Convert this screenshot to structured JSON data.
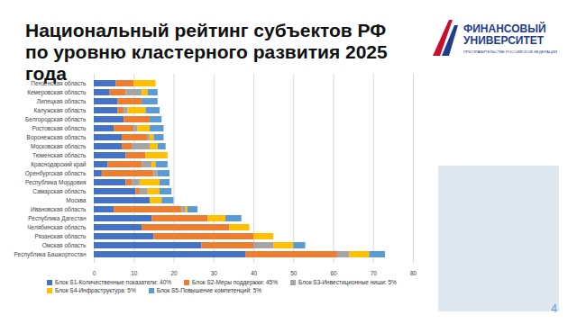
{
  "chart_data": {
    "type": "bar",
    "title": "Национальный рейтинг субъектов РФ по уровню кластерного развития 2025 года",
    "orientation": "horizontal",
    "stacked": true,
    "grid": true,
    "legend": "bottom",
    "categories": [
      "Пензенская область",
      "Кемеровская область",
      "Липецкая область",
      "Калужская область",
      "Белгородская область",
      "Ростовская область",
      "Воронежская область",
      "Московская область",
      "Тюменская область",
      "Краснодарский край",
      "Оренбургская область",
      "Республика Мордовия",
      "Самарская область",
      "Москва",
      "Ивановская область",
      "Республика Дагестан",
      "Челябинская область",
      "Рязанская область",
      "Омская область",
      "Республика Башкортостан"
    ],
    "series": [
      {
        "name": "Блок S1-Количественные показатели: 40%",
        "color": "#4472c4",
        "values": [
          5.5,
          4,
          6,
          6,
          7.5,
          5,
          7,
          7,
          8,
          3.5,
          2,
          8,
          10.5,
          14,
          5,
          14.5,
          12,
          15,
          27,
          38
        ]
      },
      {
        "name": "Блок S2-Меры поддержки: 45%",
        "color": "#ed7d31",
        "values": [
          4.5,
          4,
          6,
          1.5,
          6.5,
          5,
          6.5,
          2.5,
          5,
          8.5,
          13,
          1.5,
          1,
          0,
          17,
          14,
          22,
          25,
          13,
          23
        ]
      },
      {
        "name": "Блок S3-Инвестиционные ниши: 5%",
        "color": "#a5a5a5",
        "values": [
          0,
          4,
          0,
          1,
          0,
          1,
          0.5,
          4.5,
          0,
          2.5,
          1,
          2,
          2,
          0,
          1,
          0,
          0,
          0,
          5,
          3
        ]
      },
      {
        "name": "Блок S4-Инфраструктура: 5%",
        "color": "#ffc000",
        "values": [
          5.5,
          1.5,
          0,
          4.5,
          0,
          3,
          1,
          2,
          5.5,
          1,
          0,
          5,
          3,
          3,
          0.5,
          4.5,
          5,
          5,
          5,
          5
        ]
      },
      {
        "name": "Блок S5-Повышение компетенций: 5%",
        "color": "#5b9bd5",
        "values": [
          0,
          2.5,
          4,
          3.5,
          3,
          3.5,
          2.5,
          2,
          0,
          3,
          3,
          2.5,
          3,
          3,
          2.5,
          4,
          0,
          0,
          3,
          4
        ]
      }
    ],
    "xlim": [
      0,
      80
    ],
    "xticks": [
      0,
      10,
      20,
      30,
      40,
      50,
      60,
      70,
      80
    ]
  },
  "slide": {
    "logo": {
      "title": "ФИНАНСОВЫЙ УНИВЕРСИТЕТ",
      "subtitle": "ПРИ ПРАВИТЕЛЬСТВЕ РОССИЙСКОЙ ФЕДЕРАЦИИ"
    },
    "page_number": "4"
  }
}
